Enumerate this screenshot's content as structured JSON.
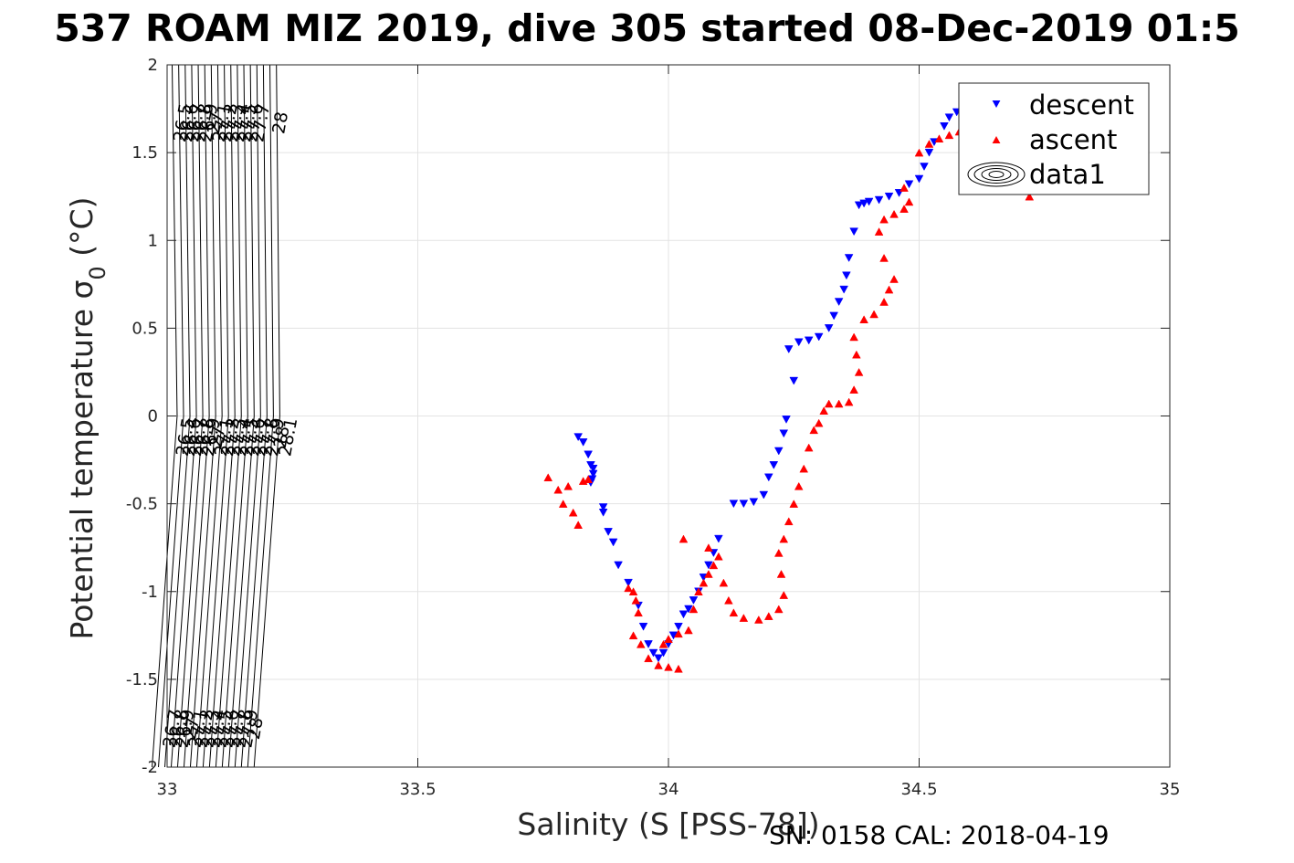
{
  "title": "537 ROAM MIZ 2019, dive 305 started 08-Dec-2019 01:5",
  "footer": "SN: 0158  CAL: 2018-04-19",
  "chart_data": {
    "type": "scatter",
    "xlabel": "Salinity (S [PSS-78])",
    "ylabel": "Potential temperature σ₀ (°C)",
    "xlim": [
      33,
      35
    ],
    "ylim": [
      -2,
      2
    ],
    "xticks": [
      33,
      33.5,
      34,
      34.5,
      35
    ],
    "xtick_labels": [
      "33",
      "33.5",
      "34",
      "34.5",
      "35"
    ],
    "yticks": [
      -2,
      -1.5,
      -1,
      -0.5,
      0,
      0.5,
      1,
      1.5,
      2
    ],
    "ytick_labels": [
      "-2",
      "-1.5",
      "-1",
      "-0.5",
      "0",
      "0.5",
      "1",
      "1.5",
      "2"
    ],
    "grid": true,
    "legend": {
      "position": "top-right",
      "entries": [
        "descent",
        "ascent",
        "data1"
      ]
    },
    "density_contours": {
      "levels": [
        26.5,
        26.6,
        26.7,
        26.8,
        26.9,
        27,
        27.1,
        27.2,
        27.3,
        27.4,
        27.5,
        27.6,
        27.7,
        27.8,
        27.9,
        28,
        28.1
      ],
      "labels_top": [
        "26.5",
        "26.6",
        "26.7",
        "26.8",
        "26.9",
        "27",
        "27.1",
        "27.2",
        "27.3",
        "27.4",
        "27.5",
        "27.6",
        "27.7",
        "28"
      ],
      "labels_middle": [
        "26.5",
        "26.6",
        "26.7",
        "26.8",
        "26.9",
        "27",
        "27.1",
        "27.2",
        "27.3",
        "27.4",
        "27.5",
        "27.6",
        "27.7",
        "27.8",
        "27.9",
        "28",
        "28.1"
      ],
      "labels_bottom": [
        "26.6",
        "26.7",
        "26.8",
        "26.9",
        "27",
        "27.1",
        "27.2",
        "27.3",
        "27.4",
        "27.5",
        "27.6",
        "27.7",
        "27.8",
        "27.9",
        "28"
      ]
    },
    "series": [
      {
        "name": "descent",
        "marker": "triangle-down",
        "color": "#0000ff",
        "points": [
          [
            33.82,
            -0.12
          ],
          [
            33.83,
            -0.15
          ],
          [
            33.84,
            -0.22
          ],
          [
            33.845,
            -0.28
          ],
          [
            33.85,
            -0.3
          ],
          [
            33.85,
            -0.33
          ],
          [
            33.848,
            -0.36
          ],
          [
            33.845,
            -0.38
          ],
          [
            33.87,
            -0.52
          ],
          [
            33.87,
            -0.55
          ],
          [
            33.88,
            -0.66
          ],
          [
            33.89,
            -0.72
          ],
          [
            33.9,
            -0.85
          ],
          [
            33.92,
            -0.95
          ],
          [
            33.94,
            -1.08
          ],
          [
            33.95,
            -1.2
          ],
          [
            33.96,
            -1.3
          ],
          [
            33.97,
            -1.35
          ],
          [
            33.98,
            -1.38
          ],
          [
            33.99,
            -1.35
          ],
          [
            34.0,
            -1.3
          ],
          [
            34.01,
            -1.25
          ],
          [
            34.02,
            -1.2
          ],
          [
            34.03,
            -1.13
          ],
          [
            34.04,
            -1.1
          ],
          [
            34.05,
            -1.05
          ],
          [
            34.06,
            -1.0
          ],
          [
            34.07,
            -0.92
          ],
          [
            34.08,
            -0.85
          ],
          [
            34.09,
            -0.78
          ],
          [
            34.1,
            -0.7
          ],
          [
            34.13,
            -0.5
          ],
          [
            34.15,
            -0.5
          ],
          [
            34.17,
            -0.49
          ],
          [
            34.19,
            -0.45
          ],
          [
            34.2,
            -0.35
          ],
          [
            34.21,
            -0.28
          ],
          [
            34.22,
            -0.2
          ],
          [
            34.23,
            -0.1
          ],
          [
            34.235,
            -0.02
          ],
          [
            34.25,
            0.2
          ],
          [
            34.24,
            0.38
          ],
          [
            34.26,
            0.42
          ],
          [
            34.28,
            0.43
          ],
          [
            34.3,
            0.45
          ],
          [
            34.32,
            0.5
          ],
          [
            34.33,
            0.57
          ],
          [
            34.34,
            0.65
          ],
          [
            34.35,
            0.72
          ],
          [
            34.355,
            0.8
          ],
          [
            34.36,
            0.9
          ],
          [
            34.37,
            1.05
          ],
          [
            34.38,
            1.2
          ],
          [
            34.39,
            1.21
          ],
          [
            34.4,
            1.22
          ],
          [
            34.42,
            1.23
          ],
          [
            34.44,
            1.25
          ],
          [
            34.46,
            1.27
          ],
          [
            34.48,
            1.32
          ],
          [
            34.5,
            1.35
          ],
          [
            34.51,
            1.42
          ],
          [
            34.52,
            1.5
          ],
          [
            34.53,
            1.56
          ],
          [
            34.55,
            1.65
          ],
          [
            34.56,
            1.7
          ],
          [
            34.575,
            1.73
          ],
          [
            34.59,
            1.74
          ],
          [
            34.6,
            1.73
          ]
        ]
      },
      {
        "name": "ascent",
        "marker": "triangle-up",
        "color": "#ff0000",
        "points": [
          [
            33.76,
            -0.35
          ],
          [
            33.78,
            -0.42
          ],
          [
            33.79,
            -0.5
          ],
          [
            33.81,
            -0.55
          ],
          [
            33.82,
            -0.62
          ],
          [
            33.8,
            -0.4
          ],
          [
            33.83,
            -0.37
          ],
          [
            33.84,
            -0.36
          ],
          [
            33.92,
            -0.98
          ],
          [
            33.93,
            -1.0
          ],
          [
            33.935,
            -1.05
          ],
          [
            33.94,
            -1.12
          ],
          [
            33.93,
            -1.25
          ],
          [
            33.945,
            -1.3
          ],
          [
            33.96,
            -1.38
          ],
          [
            33.98,
            -1.42
          ],
          [
            34.0,
            -1.43
          ],
          [
            34.02,
            -1.44
          ],
          [
            33.99,
            -1.3
          ],
          [
            34.0,
            -1.27
          ],
          [
            34.02,
            -1.24
          ],
          [
            34.04,
            -1.22
          ],
          [
            34.05,
            -1.1
          ],
          [
            34.06,
            -1.0
          ],
          [
            34.07,
            -0.95
          ],
          [
            34.08,
            -0.9
          ],
          [
            34.09,
            -0.85
          ],
          [
            34.1,
            -0.8
          ],
          [
            34.03,
            -0.7
          ],
          [
            34.08,
            -0.75
          ],
          [
            34.11,
            -0.95
          ],
          [
            34.12,
            -1.05
          ],
          [
            34.13,
            -1.12
          ],
          [
            34.15,
            -1.15
          ],
          [
            34.18,
            -1.16
          ],
          [
            34.2,
            -1.14
          ],
          [
            34.22,
            -1.1
          ],
          [
            34.23,
            -1.02
          ],
          [
            34.225,
            -0.9
          ],
          [
            34.22,
            -0.78
          ],
          [
            34.23,
            -0.7
          ],
          [
            34.24,
            -0.6
          ],
          [
            34.25,
            -0.5
          ],
          [
            34.26,
            -0.4
          ],
          [
            34.27,
            -0.3
          ],
          [
            34.28,
            -0.18
          ],
          [
            34.29,
            -0.08
          ],
          [
            34.3,
            -0.04
          ],
          [
            34.31,
            0.03
          ],
          [
            34.32,
            0.07
          ],
          [
            34.34,
            0.07
          ],
          [
            34.36,
            0.08
          ],
          [
            34.37,
            0.15
          ],
          [
            34.38,
            0.25
          ],
          [
            34.375,
            0.35
          ],
          [
            34.37,
            0.45
          ],
          [
            34.39,
            0.55
          ],
          [
            34.41,
            0.58
          ],
          [
            34.43,
            0.65
          ],
          [
            34.44,
            0.72
          ],
          [
            34.45,
            0.78
          ],
          [
            34.43,
            0.9
          ],
          [
            34.42,
            1.05
          ],
          [
            34.43,
            1.12
          ],
          [
            34.45,
            1.15
          ],
          [
            34.47,
            1.18
          ],
          [
            34.48,
            1.22
          ],
          [
            34.47,
            1.3
          ],
          [
            34.5,
            1.5
          ],
          [
            34.52,
            1.55
          ],
          [
            34.54,
            1.58
          ],
          [
            34.56,
            1.6
          ],
          [
            34.58,
            1.62
          ],
          [
            34.6,
            1.62
          ],
          [
            34.62,
            1.63
          ],
          [
            34.64,
            1.62
          ],
          [
            34.65,
            1.58
          ],
          [
            34.67,
            1.5
          ],
          [
            34.69,
            1.4
          ],
          [
            34.71,
            1.3
          ],
          [
            34.72,
            1.25
          ]
        ]
      }
    ]
  }
}
